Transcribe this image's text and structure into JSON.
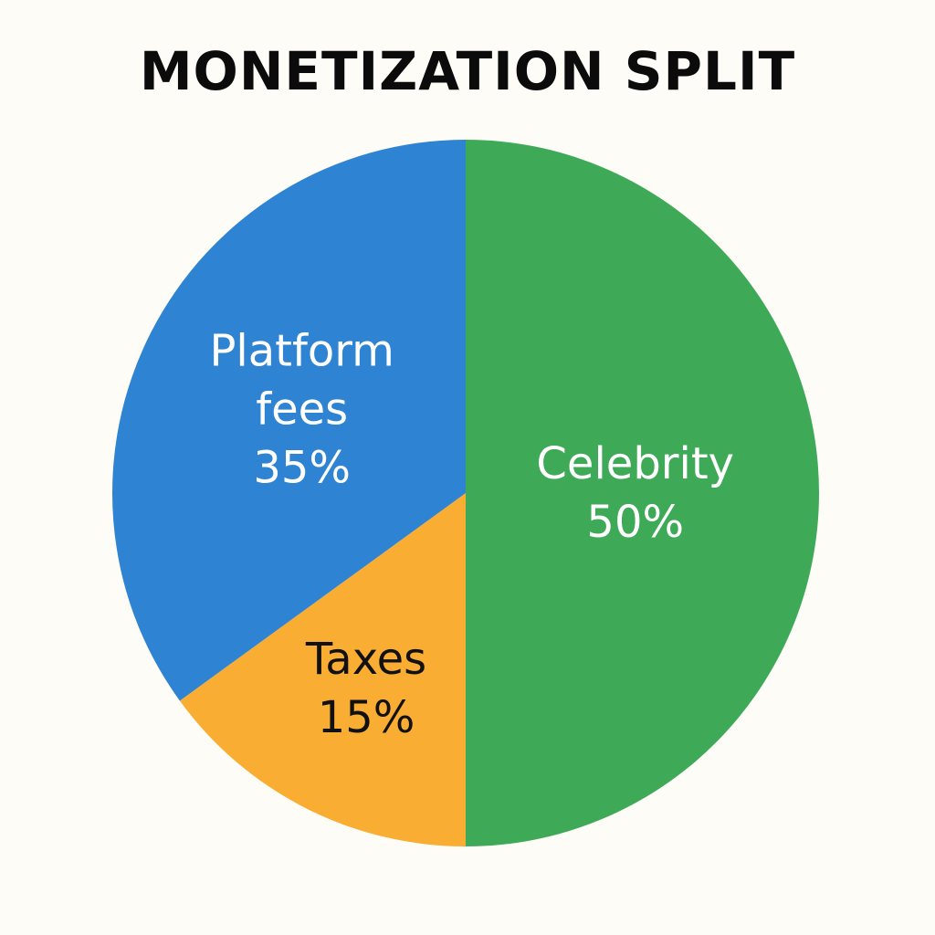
{
  "chart_data": {
    "type": "pie",
    "title": "MONETIZATION SPLIT",
    "slices": [
      {
        "label_lines": [
          "Celebrity",
          "50%"
        ],
        "value": 50,
        "color": "#3ea957",
        "text_color": "#ffffff"
      },
      {
        "label_lines": [
          "Taxes",
          "15%"
        ],
        "value": 15,
        "color": "#f9ad33",
        "text_color": "#111111"
      },
      {
        "label_lines": [
          "Platform",
          "fees",
          "35%"
        ],
        "value": 35,
        "color": "#2f83d3",
        "text_color": "#ffffff"
      }
    ],
    "start": "12 o'clock",
    "direction": "clockwise"
  }
}
